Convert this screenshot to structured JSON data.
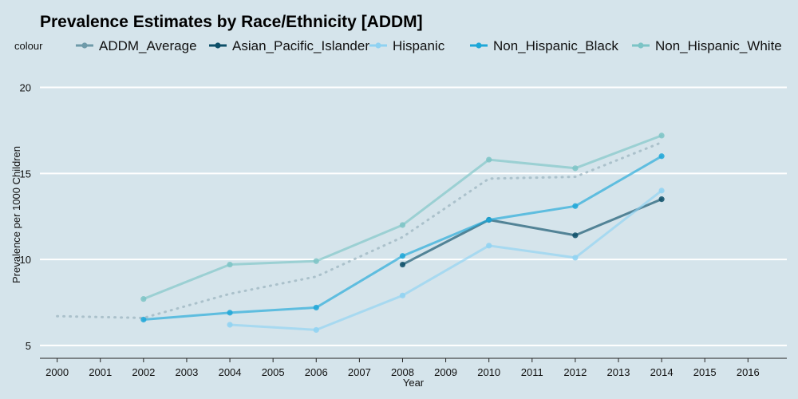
{
  "chart_data": {
    "type": "line",
    "title": "Prevalence Estimates by Race/Ethnicity [ADDM]",
    "xlabel": "Year",
    "ylabel": "Prevalence per 1000 Children",
    "legend_title": "colour",
    "legend_position": "top",
    "x_ticks": [
      2000,
      2001,
      2002,
      2003,
      2004,
      2005,
      2006,
      2007,
      2008,
      2009,
      2010,
      2011,
      2012,
      2013,
      2014,
      2015,
      2016
    ],
    "y_ticks": [
      5,
      10,
      15,
      20
    ],
    "xlim": [
      1999.6,
      2016.9
    ],
    "ylim": [
      4.25,
      21
    ],
    "grid": "horizontal",
    "series": [
      {
        "name": "ADDM_Average",
        "color": "#6e9aa9",
        "style": "dotted",
        "points": [
          [
            2000,
            6.7
          ],
          [
            2002,
            6.6
          ],
          [
            2004,
            8.0
          ],
          [
            2006,
            9.0
          ],
          [
            2008,
            11.3
          ],
          [
            2010,
            14.7
          ],
          [
            2012,
            14.8
          ],
          [
            2014,
            16.8
          ]
        ]
      },
      {
        "name": "Asian_Pacific_Islander",
        "color": "#0d4f68",
        "style": "solid",
        "points": [
          [
            2008,
            9.7
          ],
          [
            2010,
            12.3
          ],
          [
            2012,
            11.4
          ],
          [
            2014,
            13.5
          ]
        ]
      },
      {
        "name": "Hispanic",
        "color": "#8fd2f2",
        "style": "solid",
        "points": [
          [
            2004,
            6.2
          ],
          [
            2006,
            5.9
          ],
          [
            2008,
            7.9
          ],
          [
            2010,
            10.8
          ],
          [
            2012,
            10.1
          ],
          [
            2014,
            14.0
          ]
        ]
      },
      {
        "name": "Non_Hispanic_Black",
        "color": "#1ea7d8",
        "style": "solid",
        "points": [
          [
            2002,
            6.5
          ],
          [
            2004,
            6.9
          ],
          [
            2006,
            7.2
          ],
          [
            2008,
            10.2
          ],
          [
            2010,
            12.3
          ],
          [
            2012,
            13.1
          ],
          [
            2014,
            16.0
          ]
        ]
      },
      {
        "name": "Non_Hispanic_White",
        "color": "#7cc4c6",
        "style": "solid",
        "points": [
          [
            2002,
            7.7
          ],
          [
            2004,
            9.7
          ],
          [
            2006,
            9.9
          ],
          [
            2008,
            12.0
          ],
          [
            2010,
            15.8
          ],
          [
            2012,
            15.3
          ],
          [
            2014,
            17.2
          ]
        ]
      }
    ]
  }
}
